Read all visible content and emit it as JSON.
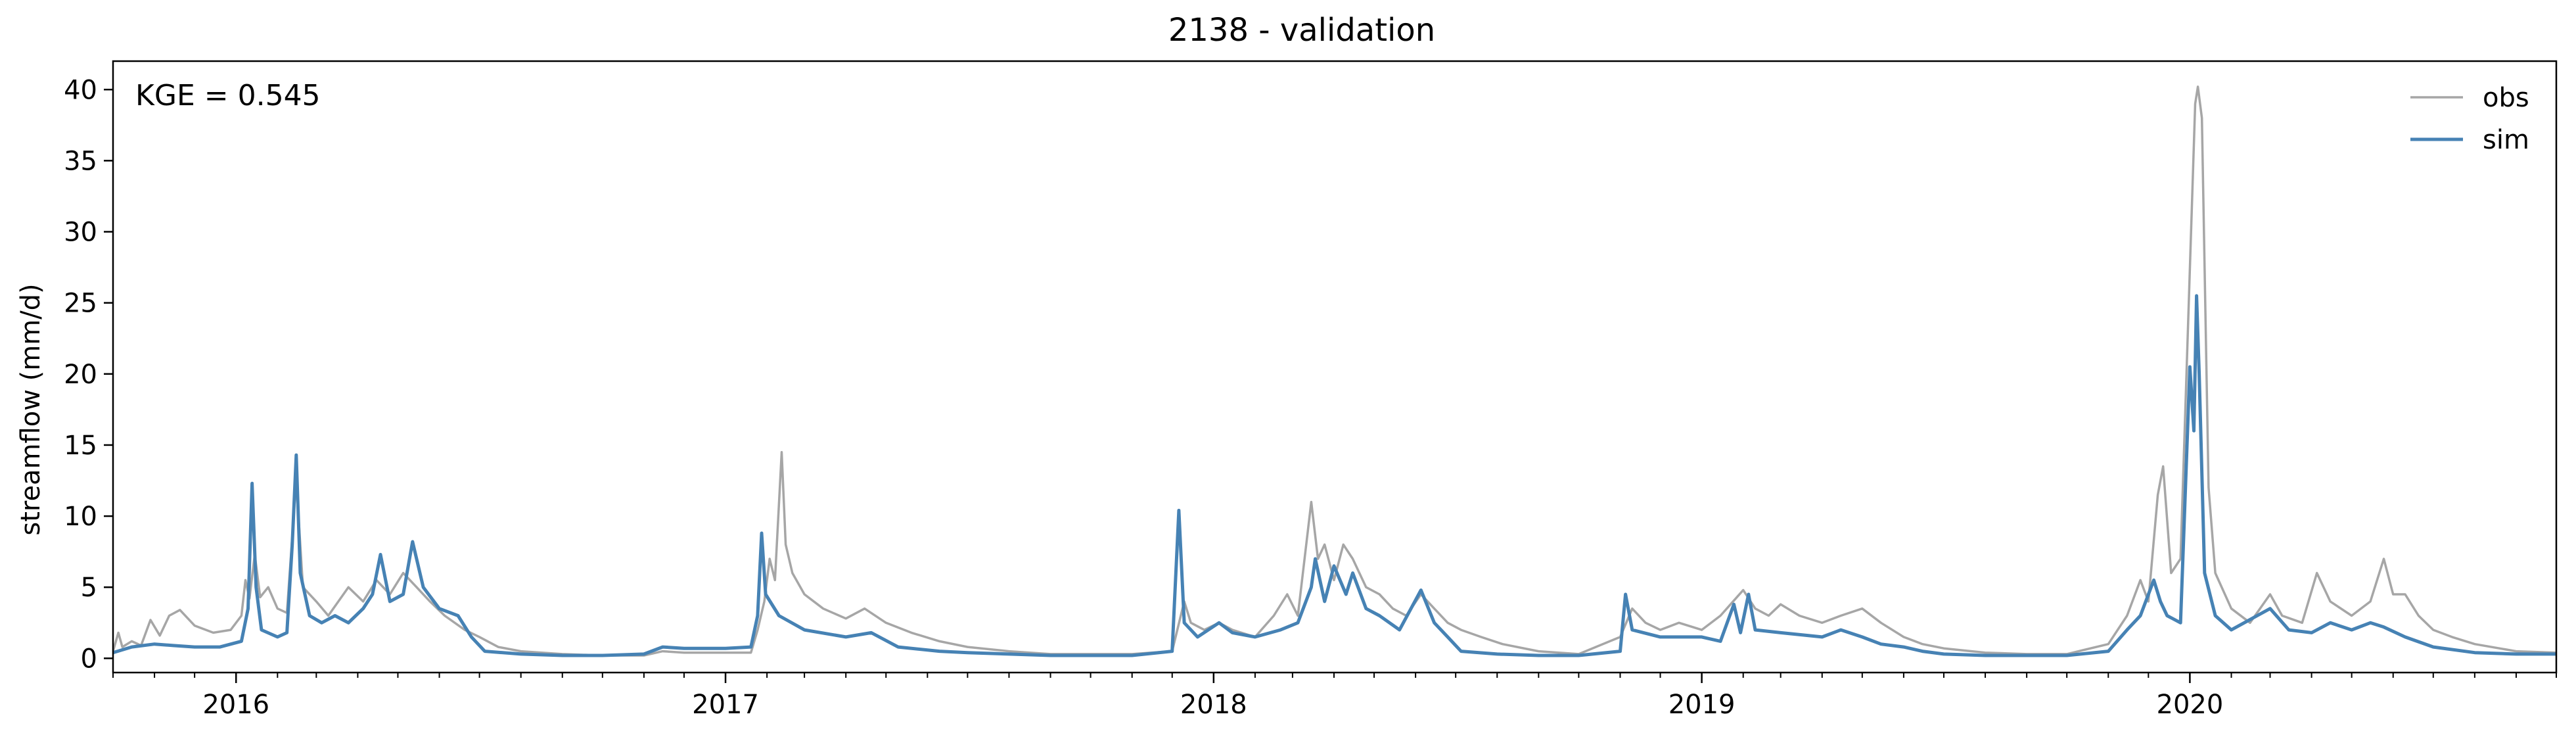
{
  "chart_data": {
    "type": "line",
    "title": "2138 - validation",
    "xlabel": "",
    "ylabel": "streamflow (mm/d)",
    "x_axis": {
      "kind": "date",
      "range": [
        "2015-10-01",
        "2020-10-01"
      ],
      "major_ticks": [
        "2016-01-01",
        "2017-01-01",
        "2018-01-01",
        "2019-01-01",
        "2020-01-01"
      ],
      "major_tick_labels": [
        "2016",
        "2017",
        "2018",
        "2019",
        "2020"
      ],
      "minor_ticks": "monthly"
    },
    "y_axis": {
      "range": [
        -1,
        42
      ],
      "ticks": [
        0,
        5,
        10,
        15,
        20,
        25,
        30,
        35,
        40
      ],
      "tick_labels": [
        "0",
        "5",
        "10",
        "15",
        "20",
        "25",
        "30",
        "35",
        "40"
      ]
    },
    "grid": false,
    "legend": {
      "placement": "top-right",
      "frame": false
    },
    "annotation": "KGE = 0.545",
    "series": [
      {
        "name": "obs",
        "color": "#a6a6a6",
        "points": [
          [
            "2015-10-01",
            0.5
          ],
          [
            "2015-10-05",
            1.8
          ],
          [
            "2015-10-08",
            0.8
          ],
          [
            "2015-10-15",
            1.2
          ],
          [
            "2015-10-22",
            0.9
          ],
          [
            "2015-10-29",
            2.7
          ],
          [
            "2015-11-05",
            1.6
          ],
          [
            "2015-11-12",
            3.0
          ],
          [
            "2015-11-20",
            3.4
          ],
          [
            "2015-12-01",
            2.3
          ],
          [
            "2015-12-15",
            1.8
          ],
          [
            "2015-12-28",
            2.0
          ],
          [
            "2016-01-05",
            3.0
          ],
          [
            "2016-01-08",
            5.5
          ],
          [
            "2016-01-11",
            4.2
          ],
          [
            "2016-01-15",
            7.3
          ],
          [
            "2016-01-19",
            4.3
          ],
          [
            "2016-01-25",
            5.0
          ],
          [
            "2016-02-01",
            3.5
          ],
          [
            "2016-02-08",
            3.2
          ],
          [
            "2016-02-15",
            12.5
          ],
          [
            "2016-02-20",
            5.0
          ],
          [
            "2016-03-01",
            4.0
          ],
          [
            "2016-03-10",
            3.0
          ],
          [
            "2016-03-25",
            5.0
          ],
          [
            "2016-04-05",
            4.0
          ],
          [
            "2016-04-15",
            5.5
          ],
          [
            "2016-04-25",
            4.5
          ],
          [
            "2016-05-05",
            6.0
          ],
          [
            "2016-05-15",
            5.0
          ],
          [
            "2016-05-25",
            4.0
          ],
          [
            "2016-06-05",
            3.0
          ],
          [
            "2016-06-20",
            2.0
          ],
          [
            "2016-07-01",
            1.5
          ],
          [
            "2016-07-15",
            0.8
          ],
          [
            "2016-08-01",
            0.5
          ],
          [
            "2016-09-01",
            0.3
          ],
          [
            "2016-10-01",
            0.2
          ],
          [
            "2016-11-01",
            0.2
          ],
          [
            "2016-11-15",
            0.5
          ],
          [
            "2016-12-01",
            0.4
          ],
          [
            "2017-01-01",
            0.4
          ],
          [
            "2017-01-20",
            0.4
          ],
          [
            "2017-01-25",
            2.0
          ],
          [
            "2017-01-30",
            4.0
          ],
          [
            "2017-02-03",
            7.0
          ],
          [
            "2017-02-07",
            5.5
          ],
          [
            "2017-02-12",
            14.5
          ],
          [
            "2017-02-15",
            8.0
          ],
          [
            "2017-02-20",
            6.0
          ],
          [
            "2017-03-01",
            4.5
          ],
          [
            "2017-03-15",
            3.5
          ],
          [
            "2017-04-01",
            2.8
          ],
          [
            "2017-04-15",
            3.5
          ],
          [
            "2017-05-01",
            2.5
          ],
          [
            "2017-05-20",
            1.8
          ],
          [
            "2017-06-10",
            1.2
          ],
          [
            "2017-07-01",
            0.8
          ],
          [
            "2017-08-01",
            0.5
          ],
          [
            "2017-09-01",
            0.3
          ],
          [
            "2017-10-01",
            0.3
          ],
          [
            "2017-11-01",
            0.3
          ],
          [
            "2017-12-01",
            0.5
          ],
          [
            "2017-12-10",
            4.0
          ],
          [
            "2017-12-15",
            2.5
          ],
          [
            "2017-12-25",
            2.0
          ],
          [
            "2018-01-05",
            2.5
          ],
          [
            "2018-01-15",
            2.0
          ],
          [
            "2018-02-01",
            1.5
          ],
          [
            "2018-02-15",
            3.0
          ],
          [
            "2018-02-25",
            4.5
          ],
          [
            "2018-03-05",
            3.0
          ],
          [
            "2018-03-15",
            11.0
          ],
          [
            "2018-03-20",
            7.0
          ],
          [
            "2018-03-25",
            8.0
          ],
          [
            "2018-04-01",
            5.5
          ],
          [
            "2018-04-08",
            8.0
          ],
          [
            "2018-04-15",
            7.0
          ],
          [
            "2018-04-25",
            5.0
          ],
          [
            "2018-05-05",
            4.5
          ],
          [
            "2018-05-15",
            3.5
          ],
          [
            "2018-05-25",
            3.0
          ],
          [
            "2018-06-05",
            4.5
          ],
          [
            "2018-06-15",
            3.5
          ],
          [
            "2018-06-25",
            2.5
          ],
          [
            "2018-07-05",
            2.0
          ],
          [
            "2018-07-20",
            1.5
          ],
          [
            "2018-08-05",
            1.0
          ],
          [
            "2018-09-01",
            0.5
          ],
          [
            "2018-10-01",
            0.3
          ],
          [
            "2018-11-01",
            1.5
          ],
          [
            "2018-11-10",
            3.5
          ],
          [
            "2018-11-20",
            2.5
          ],
          [
            "2018-12-01",
            2.0
          ],
          [
            "2018-12-15",
            2.5
          ],
          [
            "2019-01-01",
            2.0
          ],
          [
            "2019-01-15",
            3.0
          ],
          [
            "2019-02-01",
            4.8
          ],
          [
            "2019-02-10",
            3.5
          ],
          [
            "2019-02-20",
            3.0
          ],
          [
            "2019-03-01",
            3.8
          ],
          [
            "2019-03-15",
            3.0
          ],
          [
            "2019-04-01",
            2.5
          ],
          [
            "2019-04-15",
            3.0
          ],
          [
            "2019-05-01",
            3.5
          ],
          [
            "2019-05-15",
            2.5
          ],
          [
            "2019-06-01",
            1.5
          ],
          [
            "2019-06-15",
            1.0
          ],
          [
            "2019-07-01",
            0.7
          ],
          [
            "2019-08-01",
            0.4
          ],
          [
            "2019-09-01",
            0.3
          ],
          [
            "2019-10-01",
            0.3
          ],
          [
            "2019-11-01",
            1.0
          ],
          [
            "2019-11-15",
            3.0
          ],
          [
            "2019-11-25",
            5.5
          ],
          [
            "2019-12-01",
            4.0
          ],
          [
            "2019-12-08",
            11.5
          ],
          [
            "2019-12-12",
            13.5
          ],
          [
            "2019-12-18",
            6.0
          ],
          [
            "2019-12-25",
            7.0
          ],
          [
            "2020-01-05",
            39.0
          ],
          [
            "2020-01-07",
            40.2
          ],
          [
            "2020-01-10",
            38.0
          ],
          [
            "2020-01-15",
            12.0
          ],
          [
            "2020-01-20",
            6.0
          ],
          [
            "2020-02-01",
            3.5
          ],
          [
            "2020-02-15",
            2.5
          ],
          [
            "2020-03-01",
            4.5
          ],
          [
            "2020-03-10",
            3.0
          ],
          [
            "2020-03-25",
            2.5
          ],
          [
            "2020-04-05",
            6.0
          ],
          [
            "2020-04-15",
            4.0
          ],
          [
            "2020-05-01",
            3.0
          ],
          [
            "2020-05-15",
            4.0
          ],
          [
            "2020-05-25",
            7.0
          ],
          [
            "2020-06-01",
            4.5
          ],
          [
            "2020-06-10",
            4.5
          ],
          [
            "2020-06-20",
            3.0
          ],
          [
            "2020-07-01",
            2.0
          ],
          [
            "2020-07-15",
            1.5
          ],
          [
            "2020-08-01",
            1.0
          ],
          [
            "2020-09-01",
            0.5
          ],
          [
            "2020-10-01",
            0.4
          ]
        ]
      },
      {
        "name": "sim",
        "color": "#4682b4",
        "points": [
          [
            "2015-10-01",
            0.4
          ],
          [
            "2015-10-15",
            0.8
          ],
          [
            "2015-11-01",
            1.0
          ],
          [
            "2015-11-15",
            0.9
          ],
          [
            "2015-12-01",
            0.8
          ],
          [
            "2015-12-20",
            0.8
          ],
          [
            "2016-01-05",
            1.2
          ],
          [
            "2016-01-10",
            3.5
          ],
          [
            "2016-01-13",
            12.3
          ],
          [
            "2016-01-16",
            5.0
          ],
          [
            "2016-01-20",
            2.0
          ],
          [
            "2016-02-01",
            1.5
          ],
          [
            "2016-02-08",
            1.8
          ],
          [
            "2016-02-12",
            8.0
          ],
          [
            "2016-02-15",
            14.3
          ],
          [
            "2016-02-18",
            6.0
          ],
          [
            "2016-02-25",
            3.0
          ],
          [
            "2016-03-05",
            2.5
          ],
          [
            "2016-03-15",
            3.0
          ],
          [
            "2016-03-25",
            2.5
          ],
          [
            "2016-04-05",
            3.5
          ],
          [
            "2016-04-12",
            4.5
          ],
          [
            "2016-04-18",
            7.3
          ],
          [
            "2016-04-25",
            4.0
          ],
          [
            "2016-05-05",
            4.5
          ],
          [
            "2016-05-12",
            8.2
          ],
          [
            "2016-05-20",
            5.0
          ],
          [
            "2016-06-01",
            3.5
          ],
          [
            "2016-06-15",
            3.0
          ],
          [
            "2016-06-25",
            1.5
          ],
          [
            "2016-07-05",
            0.5
          ],
          [
            "2016-08-01",
            0.3
          ],
          [
            "2016-09-01",
            0.2
          ],
          [
            "2016-10-01",
            0.2
          ],
          [
            "2016-11-01",
            0.3
          ],
          [
            "2016-11-15",
            0.8
          ],
          [
            "2016-12-01",
            0.7
          ],
          [
            "2017-01-01",
            0.7
          ],
          [
            "2017-01-20",
            0.8
          ],
          [
            "2017-01-25",
            3.0
          ],
          [
            "2017-01-28",
            8.8
          ],
          [
            "2017-01-31",
            4.5
          ],
          [
            "2017-02-10",
            3.0
          ],
          [
            "2017-03-01",
            2.0
          ],
          [
            "2017-04-01",
            1.5
          ],
          [
            "2017-04-20",
            1.8
          ],
          [
            "2017-05-10",
            0.8
          ],
          [
            "2017-06-10",
            0.5
          ],
          [
            "2017-07-01",
            0.4
          ],
          [
            "2017-08-01",
            0.3
          ],
          [
            "2017-09-01",
            0.2
          ],
          [
            "2017-10-01",
            0.2
          ],
          [
            "2017-11-01",
            0.2
          ],
          [
            "2017-12-01",
            0.5
          ],
          [
            "2017-12-06",
            10.4
          ],
          [
            "2017-12-10",
            2.5
          ],
          [
            "2017-12-20",
            1.5
          ],
          [
            "2018-01-05",
            2.5
          ],
          [
            "2018-01-15",
            1.8
          ],
          [
            "2018-02-01",
            1.5
          ],
          [
            "2018-02-20",
            2.0
          ],
          [
            "2018-03-05",
            2.5
          ],
          [
            "2018-03-15",
            5.0
          ],
          [
            "2018-03-18",
            7.0
          ],
          [
            "2018-03-25",
            4.0
          ],
          [
            "2018-04-01",
            6.5
          ],
          [
            "2018-04-10",
            4.5
          ],
          [
            "2018-04-15",
            6.0
          ],
          [
            "2018-04-25",
            3.5
          ],
          [
            "2018-05-05",
            3.0
          ],
          [
            "2018-05-20",
            2.0
          ],
          [
            "2018-06-05",
            4.8
          ],
          [
            "2018-06-15",
            2.5
          ],
          [
            "2018-06-25",
            1.5
          ],
          [
            "2018-07-05",
            0.5
          ],
          [
            "2018-08-01",
            0.3
          ],
          [
            "2018-09-01",
            0.2
          ],
          [
            "2018-10-01",
            0.2
          ],
          [
            "2018-11-01",
            0.5
          ],
          [
            "2018-11-05",
            4.5
          ],
          [
            "2018-11-10",
            2.0
          ],
          [
            "2018-12-01",
            1.5
          ],
          [
            "2019-01-01",
            1.5
          ],
          [
            "2019-01-15",
            1.2
          ],
          [
            "2019-01-25",
            3.8
          ],
          [
            "2019-01-30",
            1.8
          ],
          [
            "2019-02-05",
            4.5
          ],
          [
            "2019-02-10",
            2.0
          ],
          [
            "2019-03-01",
            1.8
          ],
          [
            "2019-04-01",
            1.5
          ],
          [
            "2019-04-15",
            2.0
          ],
          [
            "2019-05-01",
            1.5
          ],
          [
            "2019-05-15",
            1.0
          ],
          [
            "2019-06-01",
            0.8
          ],
          [
            "2019-06-15",
            0.5
          ],
          [
            "2019-07-01",
            0.3
          ],
          [
            "2019-08-01",
            0.2
          ],
          [
            "2019-09-01",
            0.2
          ],
          [
            "2019-10-01",
            0.2
          ],
          [
            "2019-11-01",
            0.5
          ],
          [
            "2019-11-15",
            2.0
          ],
          [
            "2019-11-25",
            3.0
          ],
          [
            "2019-12-05",
            5.5
          ],
          [
            "2019-12-10",
            4.0
          ],
          [
            "2019-12-15",
            3.0
          ],
          [
            "2019-12-25",
            2.5
          ],
          [
            "2020-01-01",
            20.5
          ],
          [
            "2020-01-04",
            16.0
          ],
          [
            "2020-01-06",
            25.5
          ],
          [
            "2020-01-08",
            20.0
          ],
          [
            "2020-01-12",
            6.0
          ],
          [
            "2020-01-20",
            3.0
          ],
          [
            "2020-02-01",
            2.0
          ],
          [
            "2020-03-01",
            3.5
          ],
          [
            "2020-03-15",
            2.0
          ],
          [
            "2020-04-01",
            1.8
          ],
          [
            "2020-04-15",
            2.5
          ],
          [
            "2020-05-01",
            2.0
          ],
          [
            "2020-05-15",
            2.5
          ],
          [
            "2020-05-25",
            2.2
          ],
          [
            "2020-06-10",
            1.5
          ],
          [
            "2020-07-01",
            0.8
          ],
          [
            "2020-08-01",
            0.4
          ],
          [
            "2020-09-01",
            0.3
          ],
          [
            "2020-10-01",
            0.3
          ]
        ]
      }
    ]
  }
}
